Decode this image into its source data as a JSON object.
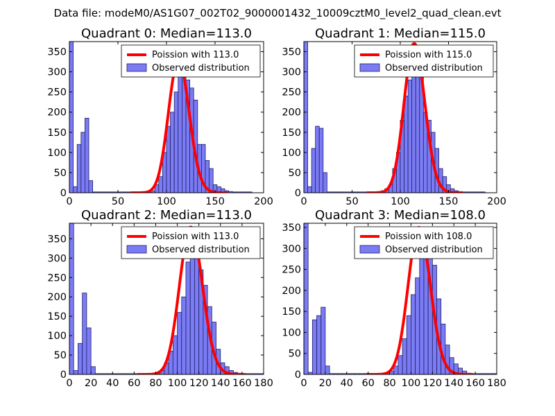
{
  "figure": {
    "suptitle": "Data file: modeM0/AS1G07_002T02_9000001432_10009cztM0_level2_quad_clean.evt"
  },
  "colors": {
    "bar_fill": "#7b7bf4",
    "bar_edge": "#1f1f66",
    "fit_line": "#ff0000",
    "axes": "#000000",
    "background": "#ffffff"
  },
  "chart_data": [
    {
      "type": "bar",
      "title": "Quadrant 0: Median=113.0",
      "xlim": [
        0,
        200
      ],
      "ylim": [
        0,
        375
      ],
      "xticks": [
        0,
        50,
        100,
        150,
        200
      ],
      "yticks": [
        0,
        50,
        100,
        150,
        200,
        250,
        300,
        350
      ],
      "bin_width": 4,
      "x": [
        0,
        4,
        8,
        12,
        16,
        20,
        24,
        28,
        32,
        36,
        40,
        44,
        48,
        52,
        56,
        60,
        64,
        68,
        72,
        76,
        80,
        84,
        88,
        92,
        96,
        100,
        104,
        108,
        112,
        116,
        120,
        124,
        128,
        132,
        136,
        140,
        144,
        148,
        152,
        156,
        160,
        164,
        168,
        172,
        176,
        180,
        184
      ],
      "values": [
        375,
        15,
        120,
        150,
        185,
        30,
        2,
        2,
        2,
        2,
        2,
        2,
        2,
        2,
        2,
        2,
        2,
        2,
        2,
        3,
        3,
        5,
        20,
        40,
        100,
        165,
        200,
        250,
        330,
        320,
        280,
        260,
        230,
        120,
        120,
        80,
        60,
        20,
        15,
        10,
        5,
        3,
        2,
        2,
        2,
        2,
        2
      ],
      "poisson_mean": 113.0,
      "legend": [
        "Poission with 113.0",
        "Observed distribution"
      ]
    },
    {
      "type": "bar",
      "title": "Quadrant 1: Median=115.0",
      "xlim": [
        0,
        200
      ],
      "ylim": [
        0,
        375
      ],
      "xticks": [
        0,
        50,
        100,
        150,
        200
      ],
      "yticks": [
        0,
        50,
        100,
        150,
        200,
        250,
        300,
        350
      ],
      "bin_width": 4,
      "x": [
        0,
        4,
        8,
        12,
        16,
        20,
        24,
        28,
        32,
        36,
        40,
        44,
        48,
        52,
        56,
        60,
        64,
        68,
        72,
        76,
        80,
        84,
        88,
        92,
        96,
        100,
        104,
        108,
        112,
        116,
        120,
        124,
        128,
        132,
        136,
        140,
        144,
        148,
        152,
        156,
        160,
        164,
        168,
        172,
        176,
        180,
        184
      ],
      "values": [
        375,
        15,
        110,
        165,
        160,
        50,
        2,
        2,
        2,
        2,
        2,
        2,
        2,
        2,
        2,
        2,
        2,
        2,
        2,
        3,
        5,
        10,
        20,
        60,
        100,
        180,
        240,
        280,
        370,
        330,
        290,
        200,
        180,
        150,
        110,
        60,
        40,
        20,
        10,
        5,
        3,
        2,
        2,
        2,
        2,
        2,
        2
      ],
      "poisson_mean": 115.0,
      "legend": [
        "Poission with 115.0",
        "Observed distribution"
      ]
    },
    {
      "type": "bar",
      "title": "Quadrant 2: Median=113.0",
      "xlim": [
        0,
        180
      ],
      "ylim": [
        0,
        390
      ],
      "xticks": [
        0,
        20,
        40,
        60,
        80,
        100,
        120,
        140,
        160,
        180
      ],
      "yticks": [
        0,
        50,
        100,
        150,
        200,
        250,
        300,
        350
      ],
      "bin_width": 4,
      "x": [
        0,
        4,
        8,
        12,
        16,
        20,
        24,
        28,
        32,
        36,
        40,
        44,
        48,
        52,
        56,
        60,
        64,
        68,
        72,
        76,
        80,
        84,
        88,
        92,
        96,
        100,
        104,
        108,
        112,
        116,
        120,
        124,
        128,
        132,
        136,
        140,
        144,
        148,
        152,
        156,
        160,
        164,
        168,
        172,
        176
      ],
      "values": [
        390,
        10,
        80,
        210,
        120,
        20,
        2,
        2,
        2,
        2,
        2,
        2,
        2,
        2,
        2,
        2,
        2,
        2,
        2,
        3,
        5,
        10,
        30,
        60,
        100,
        160,
        200,
        290,
        380,
        330,
        270,
        230,
        175,
        135,
        65,
        30,
        20,
        10,
        5,
        3,
        2,
        2,
        2,
        2,
        2
      ],
      "poisson_mean": 113.0,
      "legend": [
        "Poission with 113.0",
        "Observed distribution"
      ]
    },
    {
      "type": "bar",
      "title": "Quadrant 3: Median=108.0",
      "xlim": [
        0,
        180
      ],
      "ylim": [
        0,
        360
      ],
      "xticks": [
        0,
        20,
        40,
        60,
        80,
        100,
        120,
        140,
        160,
        180
      ],
      "yticks": [
        0,
        50,
        100,
        150,
        200,
        250,
        300,
        350
      ],
      "bin_width": 4,
      "x": [
        0,
        4,
        8,
        12,
        16,
        20,
        24,
        28,
        32,
        36,
        40,
        44,
        48,
        52,
        56,
        60,
        64,
        68,
        72,
        76,
        80,
        84,
        88,
        92,
        96,
        100,
        104,
        108,
        112,
        116,
        120,
        124,
        128,
        132,
        136,
        140,
        144,
        148,
        152,
        156,
        160,
        164,
        168,
        172,
        176
      ],
      "values": [
        360,
        5,
        130,
        140,
        160,
        20,
        2,
        2,
        2,
        2,
        2,
        2,
        2,
        2,
        2,
        2,
        2,
        2,
        2,
        3,
        8,
        20,
        45,
        85,
        140,
        190,
        230,
        320,
        350,
        300,
        260,
        180,
        120,
        70,
        40,
        25,
        15,
        8,
        3,
        2,
        2,
        2,
        2,
        2,
        2
      ],
      "poisson_mean": 108.0,
      "legend": [
        "Poission with 108.0",
        "Observed distribution"
      ]
    }
  ]
}
